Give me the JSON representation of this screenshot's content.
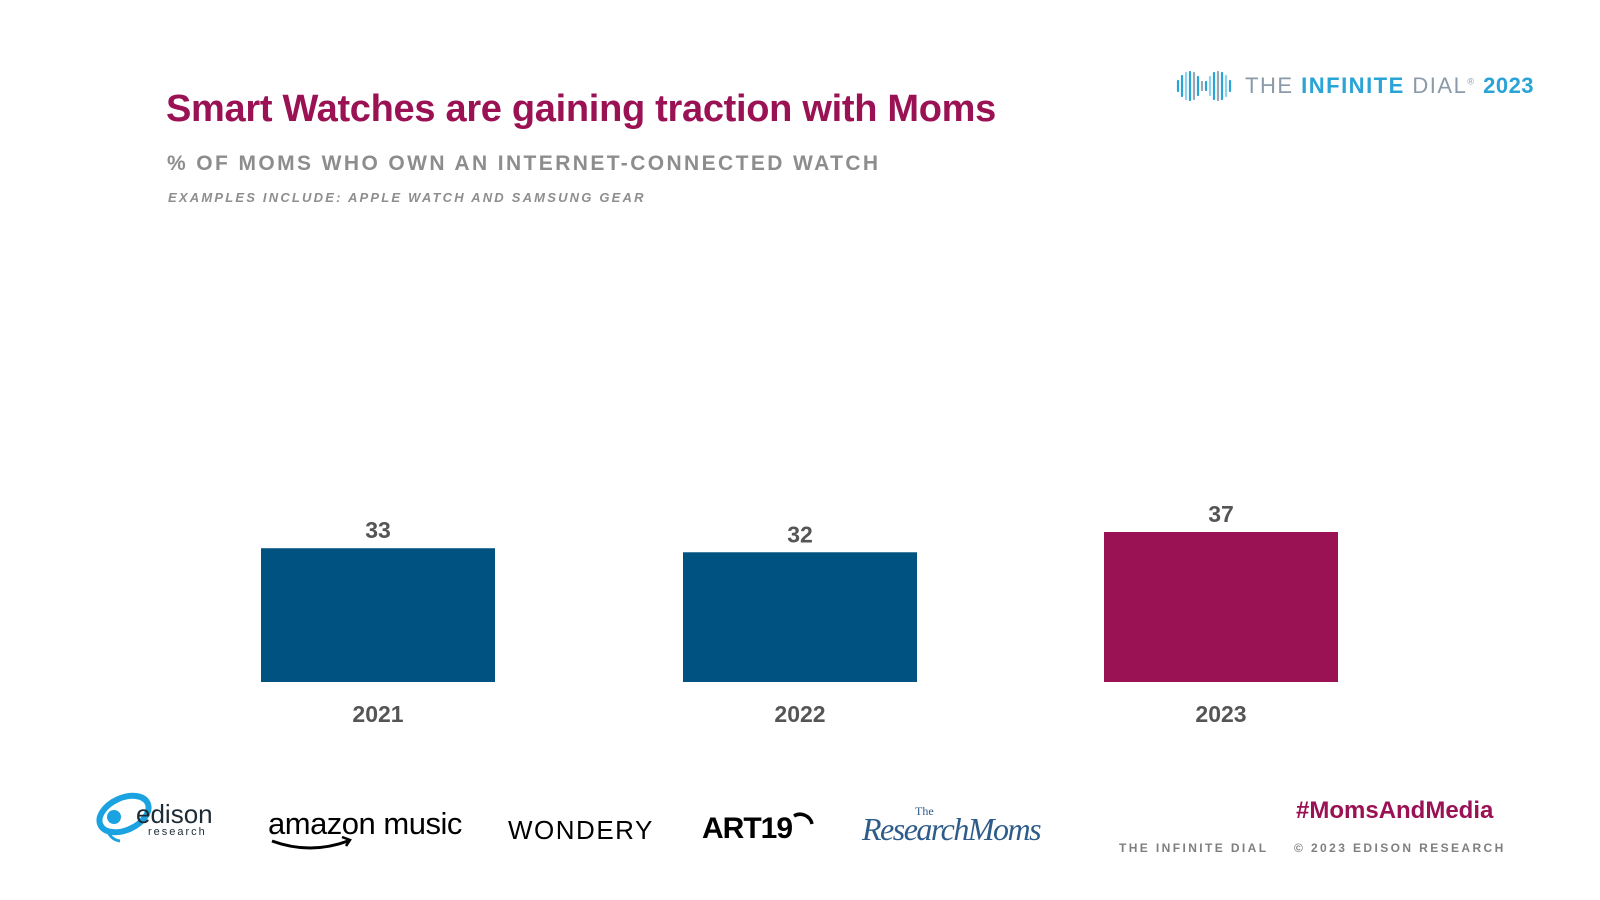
{
  "header": {
    "title": "Smart Watches are gaining traction with Moms",
    "subtitle": "% OF MOMS WHO OWN AN INTERNET-CONNECTED WATCH",
    "note": "EXAMPLES INCLUDE: APPLE WATCH AND SAMSUNG GEAR"
  },
  "brand": {
    "prefix": "THE ",
    "accent": "INFINITE",
    "suffix": " DIAL",
    "mark": "®",
    "year": "2023"
  },
  "chart_data": {
    "type": "bar",
    "title": "% OF MOMS WHO OWN AN INTERNET-CONNECTED WATCH",
    "categories": [
      "2021",
      "2022",
      "2023"
    ],
    "values": [
      33,
      32,
      37
    ],
    "colors": [
      "#005380",
      "#005380",
      "#9a1254"
    ],
    "xlabel": "",
    "ylabel": "",
    "ylim": [
      0,
      37
    ],
    "grid": false,
    "legend": "none"
  },
  "footer": {
    "logos": {
      "edison": "edison",
      "edison_sub": "research",
      "amazon": "amazon music",
      "wondery": "WONDERY",
      "art19": "ART19",
      "research_moms_the": "The",
      "research_moms": "ResearchMoms"
    },
    "hashtag": "#MomsAndMedia",
    "left_text": "THE INFINITE DIAL",
    "right_text": "© 2023 EDISON RESEARCH"
  },
  "colors": {
    "accent": "#9a1254",
    "series": "#005380",
    "brand": "#2aa3d6"
  }
}
